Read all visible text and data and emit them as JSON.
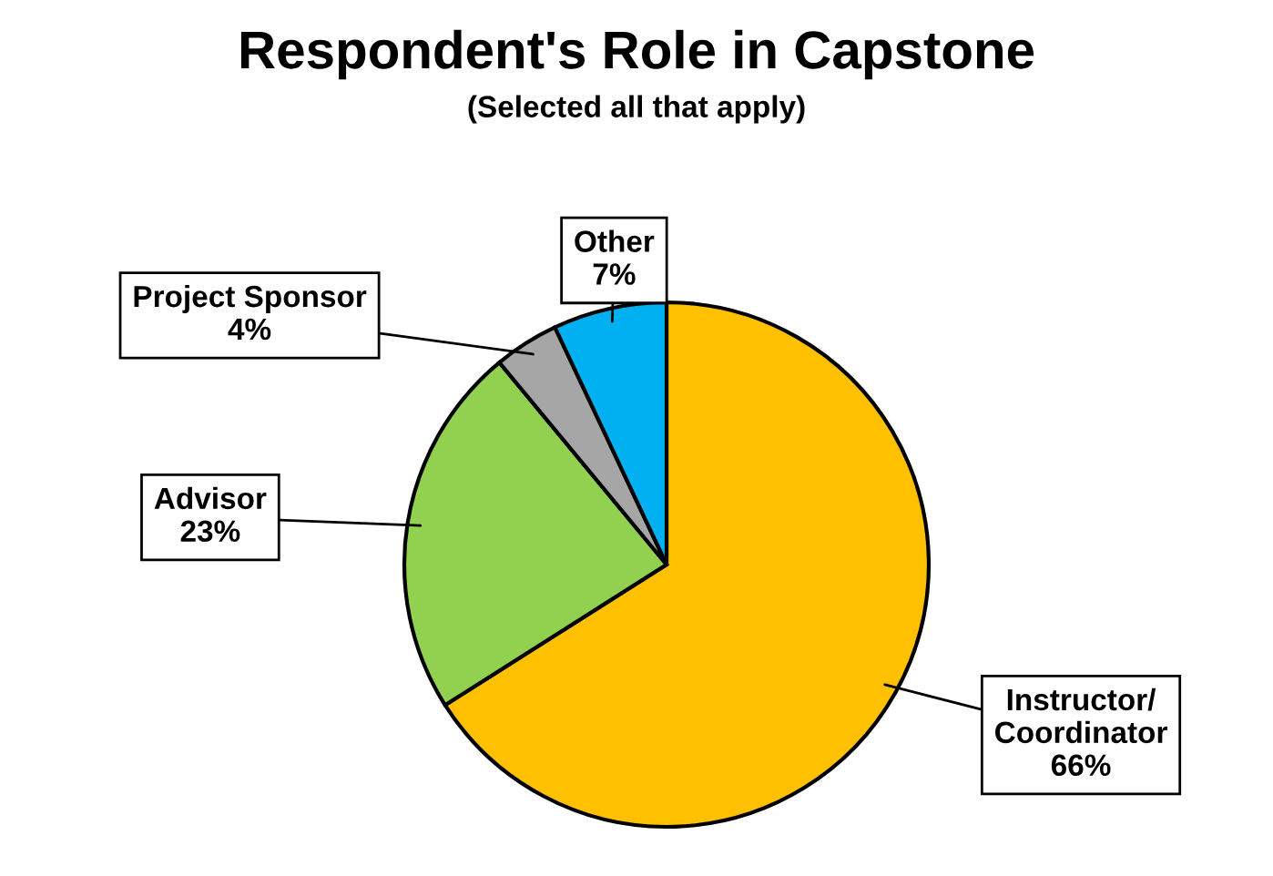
{
  "chart_data": {
    "type": "pie",
    "title": "Respondent's Role in Capstone",
    "subtitle": "(Selected all that apply)",
    "categories": [
      "Instructor/\nCoordinator",
      "Advisor",
      "Project Sponsor",
      "Other"
    ],
    "values": [
      66,
      23,
      4,
      7
    ],
    "colors": [
      "#ffc000",
      "#92d050",
      "#a6a6a6",
      "#00b0f0"
    ],
    "value_labels": [
      "66%",
      "23%",
      "4%",
      "7%"
    ],
    "legend": false
  }
}
